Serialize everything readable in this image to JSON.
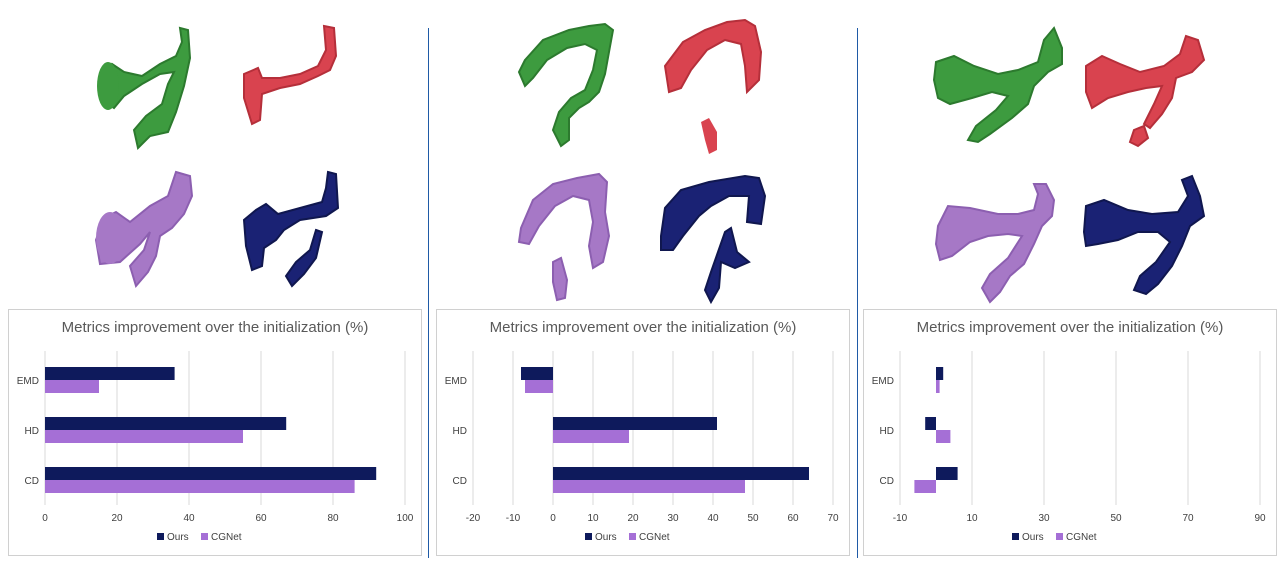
{
  "colors": {
    "green": "#3d9b3f",
    "red": "#d9434f",
    "purple": "#a678c6",
    "navy": "#1a2274",
    "ours": "#0e1a5c",
    "cgnet": "#a56fd6",
    "grid": "#d9d9d9",
    "divider": "#1f5aa6"
  },
  "chart_data": [
    {
      "type": "bar",
      "orientation": "horizontal",
      "title": "Metrics improvement over the initialization (%)",
      "categories": [
        "EMD",
        "HD",
        "CD"
      ],
      "series": [
        {
          "name": "Ours",
          "values": [
            36,
            67,
            92
          ]
        },
        {
          "name": "CGNet",
          "values": [
            15,
            55,
            86
          ]
        }
      ],
      "xlim": [
        0,
        100
      ],
      "xticks": [
        0,
        20,
        40,
        60,
        80,
        100
      ],
      "grid": true,
      "legend": "bottom"
    },
    {
      "type": "bar",
      "orientation": "horizontal",
      "title": "Metrics improvement over the initialization (%)",
      "categories": [
        "EMD",
        "HD",
        "CD"
      ],
      "series": [
        {
          "name": "Ours",
          "values": [
            -8,
            41,
            64
          ]
        },
        {
          "name": "CGNet",
          "values": [
            -7,
            19,
            48
          ]
        }
      ],
      "xlim": [
        -20,
        70
      ],
      "xticks": [
        -20,
        -10,
        0,
        10,
        20,
        30,
        40,
        50,
        60,
        70
      ],
      "grid": true,
      "legend": "bottom"
    },
    {
      "type": "bar",
      "orientation": "horizontal",
      "title": "Metrics improvement over the initialization (%)",
      "categories": [
        "EMD",
        "HD",
        "CD"
      ],
      "series": [
        {
          "name": "Ours",
          "values": [
            2,
            -3,
            6
          ]
        },
        {
          "name": "CGNet",
          "values": [
            1,
            4,
            -6
          ]
        }
      ],
      "xlim": [
        -10,
        90
      ],
      "xticks": [
        -10,
        10,
        30,
        50,
        70,
        90
      ],
      "grid": true,
      "legend": "bottom"
    }
  ]
}
